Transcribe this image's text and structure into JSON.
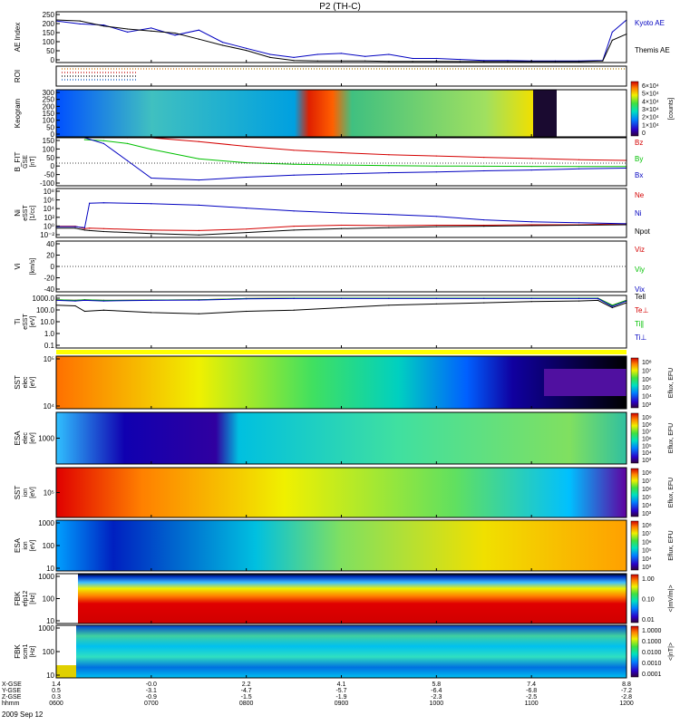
{
  "title": "P2 (TH-C)",
  "date_label": "2009 Sep 12",
  "colors": {
    "red": "#d40000",
    "green": "#00c000",
    "blue": "#0000c0",
    "black": "#000000",
    "yellow": "#ffff00"
  },
  "chart_data": [
    {
      "id": "ae",
      "type": "line",
      "ylabel": "AE Index",
      "yticks": [
        "250",
        "200",
        "150",
        "100",
        "50",
        "0"
      ],
      "ylim": [
        0,
        250
      ],
      "x": [
        6.0,
        6.25,
        6.5,
        6.75,
        7.0,
        7.25,
        7.5,
        7.75,
        8.0,
        8.25,
        8.5,
        8.75,
        9.0,
        9.25,
        9.5,
        9.75,
        10.0,
        10.25,
        10.5,
        10.75,
        11.0,
        11.25,
        11.5,
        11.75,
        11.85,
        12.0
      ],
      "series": [
        {
          "name": "Kyoto AE",
          "color": "#0000c0",
          "values": [
            205,
            190,
            185,
            150,
            170,
            135,
            160,
            100,
            70,
            40,
            25,
            40,
            45,
            30,
            40,
            20,
            20,
            15,
            10,
            10,
            8,
            8,
            8,
            10,
            150,
            210
          ]
        },
        {
          "name": "Themis AE",
          "color": "#000000",
          "values": [
            210,
            205,
            180,
            165,
            155,
            145,
            115,
            85,
            60,
            25,
            10,
            8,
            8,
            8,
            6,
            6,
            6,
            5,
            5,
            5,
            5,
            5,
            5,
            8,
            110,
            140
          ]
        }
      ]
    },
    {
      "id": "roi",
      "type": "heatmap",
      "ylabel": "ROI"
    },
    {
      "id": "keogram",
      "type": "heatmap",
      "ylabel": "Keogram",
      "yticks": [
        "300",
        "250",
        "200",
        "150",
        "100",
        "50",
        "0"
      ],
      "colorbar_ticks": [
        "6×10⁴",
        "5×10⁴",
        "4×10⁴",
        "3×10⁴",
        "2×10⁴",
        "1×10⁴",
        "0"
      ],
      "colorbar_label": "[counts]"
    },
    {
      "id": "bfit",
      "type": "line",
      "ylabel": "B_FIT",
      "ylabel2": "GSE",
      "units": "[nT]",
      "yticks": [
        "150",
        "100",
        "50",
        "0",
        "-50",
        "-100"
      ],
      "ylim": [
        -100,
        150
      ],
      "x": [
        6.3,
        6.5,
        6.75,
        7.0,
        7.5,
        8.0,
        8.5,
        9.0,
        9.5,
        10.0,
        10.5,
        11.0,
        11.5,
        12.0
      ],
      "series": [
        {
          "name": "Bz",
          "color": "#d40000",
          "values": [
            150,
            150,
            150,
            150,
            130,
            105,
            85,
            72,
            62,
            55,
            48,
            42,
            36,
            32
          ]
        },
        {
          "name": "By",
          "color": "#00c000",
          "values": [
            140,
            135,
            120,
            90,
            40,
            20,
            12,
            8,
            5,
            3,
            2,
            1,
            0,
            0
          ]
        },
        {
          "name": "Bx",
          "color": "#0000c0",
          "values": [
            150,
            120,
            30,
            -60,
            -70,
            -55,
            -45,
            -38,
            -32,
            -28,
            -22,
            -18,
            -12,
            -8
          ]
        }
      ]
    },
    {
      "id": "ni",
      "type": "line",
      "ylabel": "Ni",
      "ylabel2": "eSST",
      "units": "[1/cc]",
      "yticks": [
        "10⁸",
        "10⁶",
        "10⁴",
        "10²",
        "10⁰",
        "10⁻²"
      ],
      "ylim": [
        -2,
        8
      ],
      "log_scale": true,
      "x": [
        6.0,
        6.2,
        6.3,
        6.35,
        6.5,
        7.0,
        7.5,
        8.0,
        8.5,
        9.0,
        9.5,
        10.0,
        10.5,
        11.0,
        11.5,
        12.0
      ],
      "series": [
        {
          "name": "Ne",
          "color": "#d40000",
          "values": [
            0.3,
            0.3,
            -0.2,
            -0.1,
            -0.2,
            -0.5,
            -0.6,
            -0.3,
            0.3,
            0.5,
            0.4,
            0.5,
            0.5,
            0.6,
            0.6,
            0.8
          ]
        },
        {
          "name": "Ni",
          "color": "#0000c0",
          "values": [
            0.2,
            0.2,
            0.0,
            5.0,
            5.1,
            4.9,
            4.6,
            4.0,
            3.4,
            3.0,
            2.7,
            2.3,
            1.6,
            1.2,
            1.0,
            0.8
          ]
        },
        {
          "name": "Npot",
          "color": "#000000",
          "values": [
            -0.1,
            -0.1,
            -0.5,
            -0.6,
            -0.8,
            -1.2,
            -1.5,
            -1.0,
            -0.5,
            -0.2,
            0.0,
            0.2,
            0.3,
            0.4,
            0.5,
            0.6
          ]
        }
      ]
    },
    {
      "id": "vi",
      "type": "line",
      "ylabel": "Vi",
      "units": "[km/s]",
      "yticks": [
        "40",
        "20",
        "0",
        "-20",
        "-40"
      ],
      "ylim": [
        -50,
        50
      ],
      "legend": [
        {
          "name": "Viz",
          "color": "#d40000"
        },
        {
          "name": "Viy",
          "color": "#00c000"
        },
        {
          "name": "Vix",
          "color": "#0000c0"
        }
      ]
    },
    {
      "id": "ti",
      "type": "line",
      "ylabel": "Ti",
      "ylabel2": "eSST",
      "units": "[eV]",
      "yticks": [
        "1000.0",
        "100.0",
        "10.0",
        "1.0",
        "0.1"
      ],
      "ylim": [
        -1,
        3.3
      ],
      "log_scale": true,
      "x": [
        6.0,
        6.2,
        6.3,
        6.5,
        7.0,
        7.5,
        8.0,
        8.5,
        9.0,
        9.5,
        10.0,
        10.5,
        11.0,
        11.5,
        11.7,
        11.85,
        12.0
      ],
      "series": [
        {
          "name": "Tell",
          "color": "#000000",
          "values": [
            2.5,
            2.45,
            2.0,
            2.1,
            1.9,
            1.8,
            2.0,
            2.1,
            2.3,
            2.5,
            2.6,
            2.7,
            2.8,
            2.85,
            2.9,
            2.3,
            2.7
          ]
        },
        {
          "name": "Te⊥",
          "color": "#d40000",
          "values": [
            2.95,
            2.9,
            2.95,
            2.9,
            2.92,
            2.95,
            3.05,
            3.08,
            3.08,
            3.08,
            3.08,
            3.08,
            3.08,
            3.08,
            3.08,
            2.5,
            2.9
          ]
        },
        {
          "name": "Ti∥",
          "color": "#00c000",
          "values": [
            2.95,
            2.9,
            2.95,
            2.9,
            2.92,
            2.95,
            3.05,
            3.08,
            3.08,
            3.08,
            3.08,
            3.08,
            3.08,
            3.08,
            3.08,
            2.5,
            2.9
          ]
        },
        {
          "name": "Ti⊥",
          "color": "#0000c0",
          "values": [
            2.9,
            2.85,
            2.9,
            2.85,
            2.9,
            2.92,
            3.02,
            3.05,
            3.05,
            3.05,
            3.05,
            3.05,
            3.05,
            3.05,
            3.05,
            2.4,
            2.85
          ]
        }
      ]
    },
    {
      "id": "sst_e",
      "type": "heatmap",
      "ylabel": "SST",
      "ylabel2": "elec",
      "units": "[eV]",
      "yticks": [
        "10⁵",
        "10⁴"
      ],
      "colorbar_ticks": [
        "10⁸",
        "10⁷",
        "10⁶",
        "10⁵",
        "10⁴",
        "10³"
      ],
      "colorbar_label": "Eflux, EFU"
    },
    {
      "id": "esa_e",
      "type": "heatmap",
      "ylabel": "ESA",
      "ylabel2": "elec",
      "units": "[eV]",
      "yticks": [
        "1000"
      ],
      "colorbar_ticks": [
        "10⁹",
        "10⁸",
        "10⁷",
        "10⁶",
        "10⁵",
        "10⁴",
        "10³"
      ],
      "colorbar_label": "Eflux, EFU"
    },
    {
      "id": "sst_i",
      "type": "heatmap",
      "ylabel": "SST",
      "ylabel2": "ion",
      "units": "[eV]",
      "yticks": [
        "10⁵"
      ],
      "colorbar_ticks": [
        "10⁸",
        "10⁷",
        "10⁶",
        "10⁵",
        "10⁴",
        "10³"
      ],
      "colorbar_label": "Eflux, EFU"
    },
    {
      "id": "esa_i",
      "type": "heatmap",
      "ylabel": "ESA",
      "ylabel2": "ion",
      "units": "[eV]",
      "yticks": [
        "1000",
        "100",
        "10"
      ],
      "colorbar_ticks": [
        "10⁸",
        "10⁷",
        "10⁶",
        "10⁵",
        "10⁴",
        "10³"
      ],
      "colorbar_label": "Eflux, EFU"
    },
    {
      "id": "fbk_e",
      "type": "heatmap",
      "ylabel": "FBK",
      "ylabel2": "efp12",
      "units": "[Hz]",
      "yticks": [
        "1000",
        "100",
        "10"
      ],
      "colorbar_ticks": [
        "1.00",
        "0.10",
        "0.01"
      ],
      "colorbar_label": "<|mV/m|>"
    },
    {
      "id": "fbk_b",
      "type": "heatmap",
      "ylabel": "FBK",
      "ylabel2": "scm1",
      "units": "[Hz]",
      "yticks": [
        "1000",
        "100",
        "10"
      ],
      "colorbar_ticks": [
        "1.0000",
        "0.1000",
        "0.0100",
        "0.0010",
        "0.0001"
      ],
      "colorbar_label": "<|nT|>"
    }
  ],
  "x_axis": {
    "row_labels": [
      "X-GSE",
      "Y-GSE",
      "Z-GSE",
      "hhmm"
    ],
    "columns": [
      [
        "1.4",
        "0.5",
        "0.3",
        "0600"
      ],
      [
        "-0.0",
        "-3.1",
        "-0.9",
        "0700"
      ],
      [
        "2.2",
        "-4.7",
        "-1.5",
        "0800"
      ],
      [
        "4.1",
        "-5.7",
        "-1.9",
        "0900"
      ],
      [
        "5.8",
        "-6.4",
        "-2.3",
        "1000"
      ],
      [
        "7.4",
        "-6.8",
        "-2.5",
        "1100"
      ],
      [
        "8.8",
        "-7.2",
        "-2.8",
        "1200"
      ]
    ]
  }
}
